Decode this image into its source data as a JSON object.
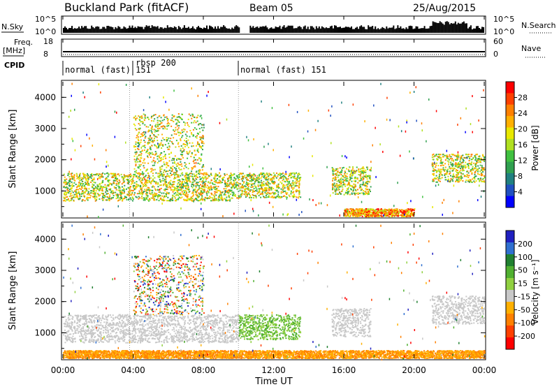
{
  "header": {
    "title": "Buckland Park (fitACF)",
    "beam": "Beam 05",
    "date": "25/Aug/2015"
  },
  "status_panels": {
    "nsky_label": "N.Sky",
    "nsky_ticks": [
      "10^5",
      "10^0"
    ],
    "nsearch_label": "N.Search",
    "nsearch_ticks": [
      "10^5",
      "10^0"
    ],
    "freq_label": "Freq.",
    "freq_unit": "[MHz]",
    "freq_ticks": [
      "18",
      "8"
    ],
    "nave_label": "Nave",
    "nave_ticks": [
      "60",
      "0"
    ],
    "cpid_label": "CPID",
    "cpid_segments": [
      {
        "start_h": 0,
        "end_h": 3.8,
        "label": "normal (fast) 151"
      },
      {
        "start_h": 3.8,
        "end_h": 10,
        "label": "rbsp 200"
      },
      {
        "start_h": 10,
        "end_h": 24,
        "label": "normal (fast) 151"
      }
    ]
  },
  "chart_data": [
    {
      "type": "heatmap",
      "title": "",
      "xlabel": "Time UT",
      "ylabel": "Slant Range [km]",
      "xlim": [
        0,
        24
      ],
      "ylim": [
        180,
        4500
      ],
      "x_ticks": [
        "00:00",
        "04:00",
        "08:00",
        "12:00",
        "16:00",
        "20:00",
        "00:00"
      ],
      "y_ticks": [
        "1000",
        "2000",
        "3000",
        "4000"
      ],
      "colorbar": {
        "label": "Power [dB]",
        "ticks": [
          "28",
          "24",
          "20",
          "16",
          "12",
          "8",
          "4"
        ],
        "colors": [
          "#ff0000",
          "#ff4000",
          "#ff8000",
          "#ffb000",
          "#e8e800",
          "#b0e020",
          "#40c040",
          "#30a050",
          "#208080",
          "#2050c0",
          "#0000ff"
        ]
      },
      "scatter_features": [
        {
          "t0": 0,
          "t1": 10,
          "range_km": "700-1600",
          "dB": "8-28"
        },
        {
          "t0": 4,
          "t1": 8,
          "range_km": "1600-3500",
          "dB": "8-24"
        },
        {
          "t0": 10,
          "t1": 13.5,
          "range_km": "800-1600",
          "dB": "8-24"
        },
        {
          "t0": 15.3,
          "t1": 17.5,
          "range_km": "900-1800",
          "dB": "8-16"
        },
        {
          "t0": 16,
          "t1": 20,
          "range_km": "200-450",
          "dB": "20-28"
        },
        {
          "t0": 21,
          "t1": 24,
          "range_km": "1300-2200",
          "dB": "8-28"
        }
      ]
    },
    {
      "type": "heatmap",
      "title": "",
      "xlabel": "Time UT",
      "ylabel": "Slant Range [km]",
      "xlim": [
        0,
        24
      ],
      "ylim": [
        180,
        4500
      ],
      "x_ticks": [
        "00:00",
        "04:00",
        "08:00",
        "12:00",
        "16:00",
        "20:00",
        "00:00"
      ],
      "y_ticks": [
        "1000",
        "2000",
        "3000",
        "4000"
      ],
      "colorbar": {
        "label": "Velocity [m s⁻¹]",
        "ticks": [
          "200",
          "100",
          "50",
          "15",
          "-15",
          "-50",
          "-100",
          "-200"
        ],
        "colors": [
          "#2020c0",
          "#3070d0",
          "#208030",
          "#50b030",
          "#90d040",
          "#c8c8c8",
          "#ffb000",
          "#ff8000",
          "#ff4000",
          "#ff0000"
        ]
      },
      "scatter_features": [
        {
          "t0": 0,
          "t1": 10,
          "range_km": "700-1600",
          "m_s": "-15 to 15"
        },
        {
          "t0": 4,
          "t1": 8,
          "range_km": "1600-3500",
          "m_s": "-100 to 200"
        },
        {
          "t0": 10,
          "t1": 13.5,
          "range_km": "800-1600",
          "m_s": "15 to 50"
        },
        {
          "t0": 15.3,
          "t1": 17.5,
          "range_km": "900-1800",
          "m_s": "-15 to 15"
        },
        {
          "t0": 0,
          "t1": 24,
          "range_km": "200-450",
          "m_s": "-50 to -15"
        },
        {
          "t0": 21,
          "t1": 24,
          "range_km": "1300-2200",
          "m_s": "-15 to 15"
        }
      ]
    }
  ]
}
